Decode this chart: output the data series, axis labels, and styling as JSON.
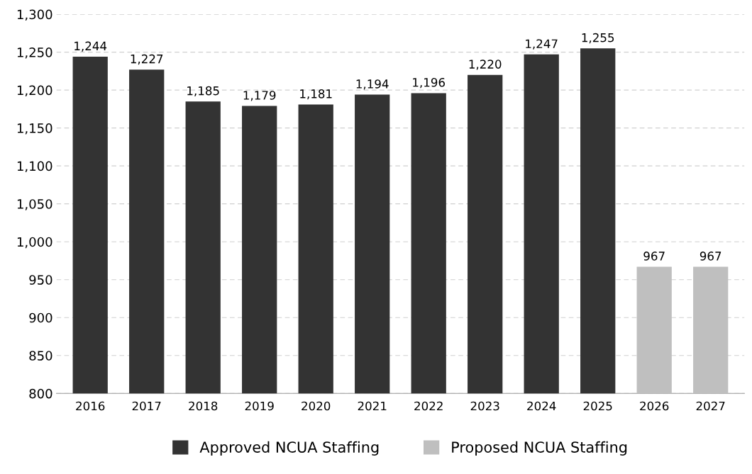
{
  "chart_data": {
    "type": "bar",
    "categories": [
      "2016",
      "2017",
      "2018",
      "2019",
      "2020",
      "2021",
      "2022",
      "2023",
      "2024",
      "2025",
      "2026",
      "2027"
    ],
    "series": [
      {
        "name": "Approved NCUA Staffing",
        "color": "#333333",
        "values": [
          1244,
          1227,
          1185,
          1179,
          1181,
          1194,
          1196,
          1220,
          1247,
          1255,
          null,
          null
        ],
        "value_labels": [
          "1,244",
          "1,227",
          "1,185",
          "1,179",
          "1,181",
          "1,194",
          "1,196",
          "1,220",
          "1,247",
          "1,255",
          null,
          null
        ]
      },
      {
        "name": "Proposed NCUA Staffing",
        "color": "#bfbfbf",
        "values": [
          null,
          null,
          null,
          null,
          null,
          null,
          null,
          null,
          null,
          null,
          967,
          967
        ],
        "value_labels": [
          null,
          null,
          null,
          null,
          null,
          null,
          null,
          null,
          null,
          null,
          "967",
          "967"
        ]
      }
    ],
    "ylim": [
      800,
      1300
    ],
    "yticks": [
      800,
      850,
      900,
      950,
      {
        "value": 1000,
        "label": "1,000"
      },
      {
        "value": 1050,
        "label": "1,050"
      },
      {
        "value": 1100,
        "label": "1,100"
      },
      {
        "value": 1150,
        "label": "1,150"
      },
      {
        "value": 1200,
        "label": "1,200"
      },
      {
        "value": 1250,
        "label": "1,250"
      },
      {
        "value": 1300,
        "label": "1,300"
      }
    ],
    "grid": "y",
    "legend": "bottom"
  }
}
